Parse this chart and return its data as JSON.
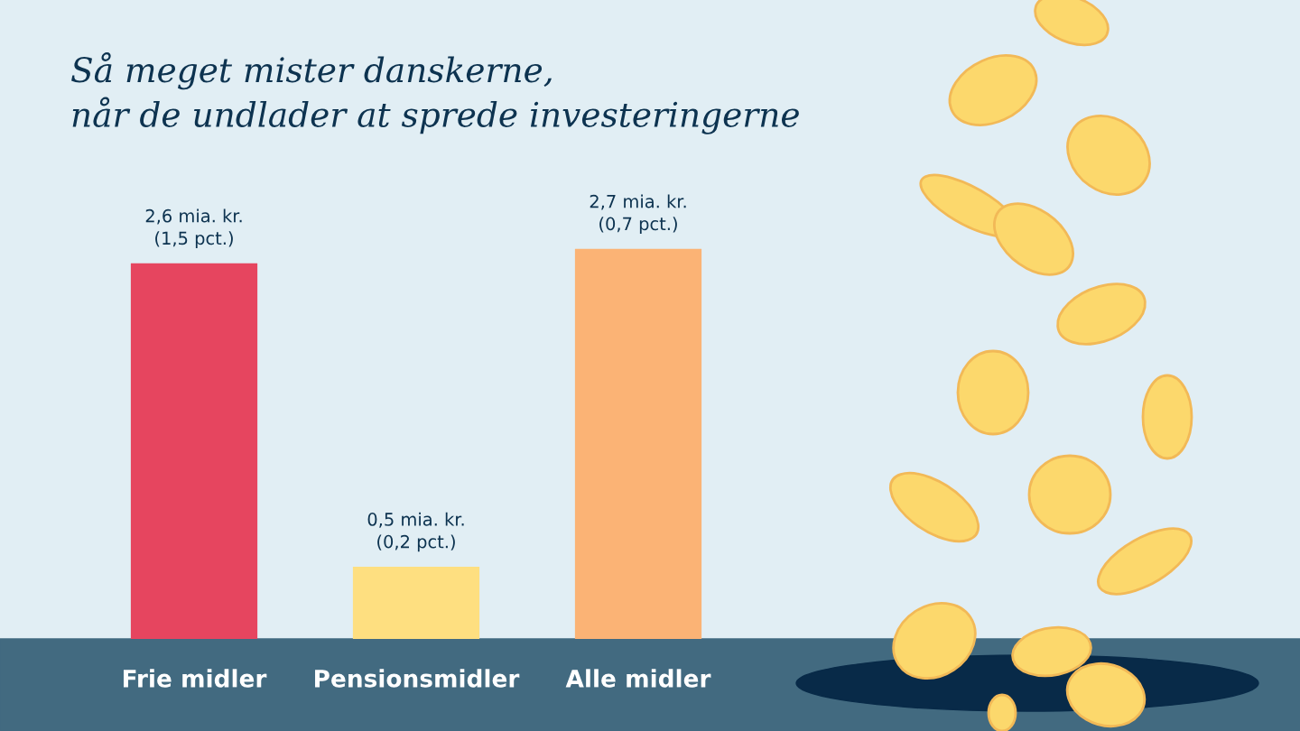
{
  "chart_data": {
    "type": "bar",
    "title": "Så meget mister danskerne,\nnår de undlader at sprede investeringerne",
    "categories": [
      "Frie midler",
      "Pensionsmidler",
      "Alle midler"
    ],
    "values": [
      2.6,
      0.5,
      2.7
    ],
    "colors": [
      "#e6455f",
      "#fedf80",
      "#fbb375"
    ],
    "value_labels": [
      "2,6 mia. kr.\n(1,5 pct.)",
      "0,5 mia. kr.\n(0,2 pct.)",
      "2,7 mia. kr.\n(0,7 pct.)"
    ],
    "grid": false,
    "legend": false
  }
}
